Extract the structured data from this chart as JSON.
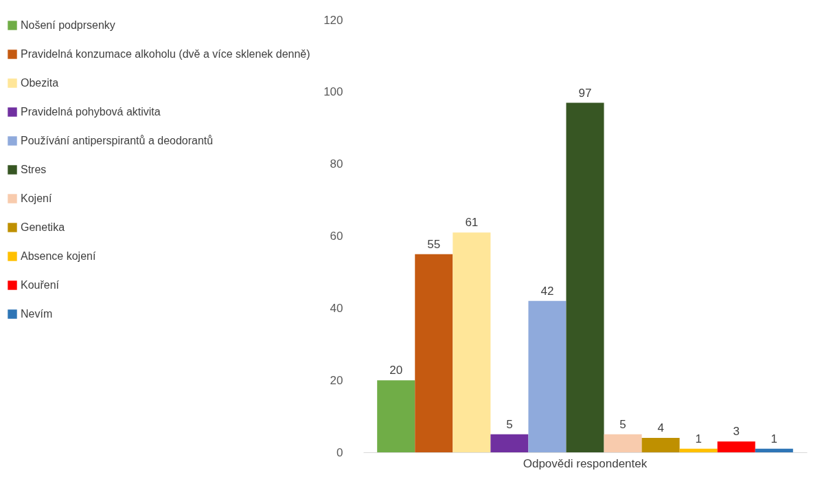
{
  "chart_data": {
    "type": "bar",
    "categories": [
      "Odpovědi respondentek"
    ],
    "series": [
      {
        "name": "Nošení podprsenky",
        "color": "#70ad47",
        "values": [
          20
        ]
      },
      {
        "name": "Pravidelná konzumace alkoholu (dvě a více sklenek denně)",
        "color": "#c55a11",
        "values": [
          55
        ]
      },
      {
        "name": "Obezita",
        "color": "#ffe699",
        "values": [
          61
        ]
      },
      {
        "name": "Pravidelná pohybová aktivita",
        "color": "#7030a0",
        "values": [
          5
        ]
      },
      {
        "name": "Používání antiperspirantů a deodorantů",
        "color": "#8faadc",
        "values": [
          42
        ]
      },
      {
        "name": "Stres",
        "color": "#375623",
        "values": [
          97
        ]
      },
      {
        "name": "Kojení",
        "color": "#f8cbad",
        "values": [
          5
        ]
      },
      {
        "name": "Genetika",
        "color": "#bf9000",
        "values": [
          4
        ]
      },
      {
        "name": "Absence kojení",
        "color": "#ffc000",
        "values": [
          1
        ]
      },
      {
        "name": "Kouření",
        "color": "#ff0000",
        "values": [
          3
        ]
      },
      {
        "name": "Nevím",
        "color": "#2e75b6",
        "values": [
          1
        ]
      }
    ],
    "ylim": [
      0,
      120
    ],
    "yticks": [
      0,
      20,
      40,
      60,
      80,
      100,
      120
    ],
    "grid": false,
    "legend": "left",
    "data_labels": true
  }
}
